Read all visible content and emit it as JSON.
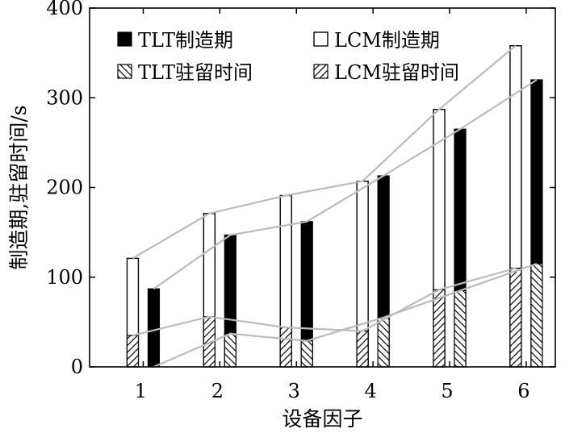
{
  "chart_data": {
    "type": "bar",
    "xlabel": "设备因子",
    "ylabel": "制造期,驻留时间/s",
    "categories": [
      "1",
      "2",
      "3",
      "4",
      "5",
      "6"
    ],
    "ylim": [
      0,
      400
    ],
    "yticks": [
      0,
      100,
      200,
      300,
      400
    ],
    "series": [
      {
        "name": "TLT制造期",
        "values": [
          87,
          147,
          162,
          213,
          265,
          320
        ]
      },
      {
        "name": "LCM制造期",
        "values": [
          121,
          171,
          191,
          207,
          287,
          358
        ]
      },
      {
        "name": "TLT驻留时间",
        "values": [
          0,
          37,
          29,
          55,
          85,
          115
        ]
      },
      {
        "name": "LCM驻留时间",
        "values": [
          35,
          56,
          44,
          40,
          86,
          110
        ]
      }
    ],
    "legend_position": "top",
    "grid": false,
    "colors": {
      "tlt": "#000000",
      "lcm": "#ffffff",
      "trend_line": "#bbbbbb"
    }
  }
}
